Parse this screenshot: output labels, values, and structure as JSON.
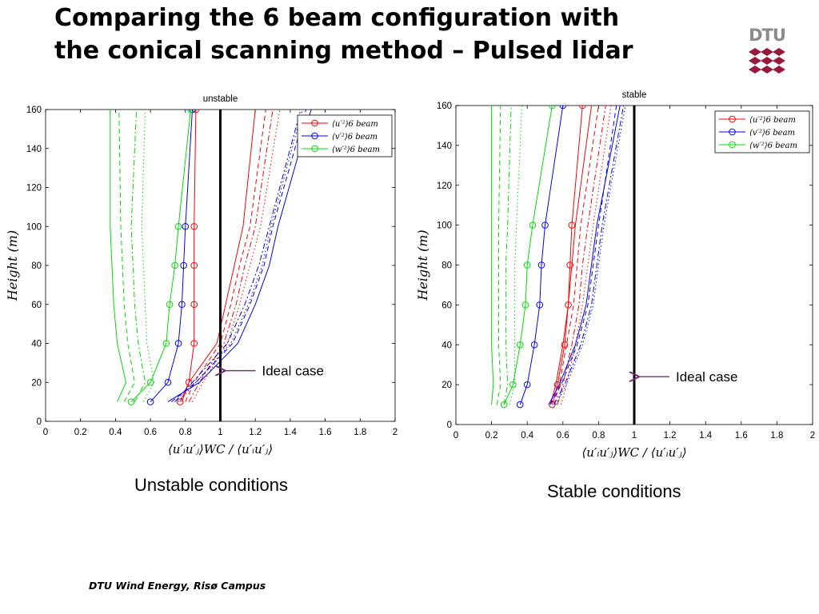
{
  "slide": {
    "title_line1": "Comparing the 6 beam configuration with",
    "title_line2": "the conical scanning method – Pulsed lidar",
    "logo_text": "DTU",
    "footer": "DTU Wind Energy, Risø Campus",
    "caption_left": "Unstable conditions",
    "caption_right": "Stable conditions"
  },
  "colors": {
    "u": "#ff0000",
    "v": "#0000ff",
    "w": "#00dd00",
    "ideal_arrow": "#7b2a7b",
    "logo": "#99193a"
  },
  "chart_data": [
    {
      "type": "line",
      "title": "unstable",
      "xlabel": "⟨u′ᵢu′ⱼ⟩WC / ⟨u′ᵢu′ⱼ⟩",
      "ylabel": "Height (m)",
      "xlim": [
        0,
        2
      ],
      "ylim": [
        0,
        160
      ],
      "xticks": [
        "0",
        "0.2",
        "0.4",
        "0.6",
        "0.8",
        "1",
        "1.2",
        "1.4",
        "1.6",
        "1.8",
        "2"
      ],
      "yticks": [
        "0",
        "20",
        "40",
        "60",
        "80",
        "100",
        "120",
        "140",
        "160"
      ],
      "heights": [
        10,
        20,
        40,
        60,
        80,
        100,
        160
      ],
      "legend": {
        "position": "top-right",
        "entries": [
          {
            "label": "⟨u′²⟩6 beam",
            "color": "#ff0000"
          },
          {
            "label": "⟨v′²⟩6 beam",
            "color": "#0000ff"
          },
          {
            "label": "⟨w′²⟩6 beam",
            "color": "#00dd00"
          }
        ]
      },
      "series": [
        {
          "component": "u",
          "style": "marker",
          "values": [
            0.77,
            0.82,
            0.85,
            0.85,
            0.85,
            0.85,
            0.86
          ]
        },
        {
          "component": "v",
          "style": "marker",
          "values": [
            0.6,
            0.7,
            0.76,
            0.78,
            0.79,
            0.8,
            0.84
          ]
        },
        {
          "component": "w",
          "style": "marker",
          "values": [
            0.49,
            0.6,
            0.69,
            0.71,
            0.74,
            0.76,
            0.83
          ]
        },
        {
          "component": "u",
          "style": "solid",
          "values": [
            0.78,
            0.82,
            0.98,
            1.03,
            1.08,
            1.13,
            1.2
          ]
        },
        {
          "component": "u",
          "style": "dashed",
          "values": [
            0.8,
            0.85,
            1.0,
            1.06,
            1.11,
            1.17,
            1.26
          ]
        },
        {
          "component": "u",
          "style": "dashdot",
          "values": [
            0.82,
            0.88,
            1.02,
            1.09,
            1.14,
            1.2,
            1.3
          ]
        },
        {
          "component": "u",
          "style": "dotted",
          "values": [
            0.84,
            0.9,
            1.04,
            1.11,
            1.17,
            1.23,
            1.34
          ]
        },
        {
          "component": "v",
          "style": "solid",
          "values": [
            0.7,
            0.88,
            1.1,
            1.2,
            1.28,
            1.33,
            1.52
          ]
        },
        {
          "component": "v",
          "style": "dashed",
          "values": [
            0.72,
            0.86,
            1.07,
            1.17,
            1.25,
            1.3,
            1.49
          ]
        },
        {
          "component": "v",
          "style": "dashdot",
          "values": [
            0.74,
            0.84,
            1.04,
            1.14,
            1.22,
            1.28,
            1.46
          ]
        },
        {
          "component": "v",
          "style": "dotted",
          "values": [
            0.76,
            0.86,
            1.06,
            1.16,
            1.24,
            1.29,
            1.47
          ]
        },
        {
          "component": "w",
          "style": "solid",
          "values": [
            0.41,
            0.46,
            0.41,
            0.39,
            0.38,
            0.37,
            0.37
          ]
        },
        {
          "component": "w",
          "style": "dashed",
          "values": [
            0.45,
            0.51,
            0.47,
            0.45,
            0.44,
            0.43,
            0.42
          ]
        },
        {
          "component": "w",
          "style": "dashdot",
          "values": [
            0.51,
            0.57,
            0.53,
            0.51,
            0.5,
            0.49,
            0.52
          ]
        },
        {
          "component": "w",
          "style": "dotted",
          "values": [
            0.56,
            0.62,
            0.58,
            0.57,
            0.56,
            0.55,
            0.57
          ]
        }
      ],
      "ideal_case": {
        "x": 1,
        "label": "Ideal case",
        "arrow_at_height": 26
      }
    },
    {
      "type": "line",
      "title": "stable",
      "xlabel": "⟨u′ᵢu′ⱼ⟩WC / ⟨u′ᵢu′ⱼ⟩",
      "ylabel": "Height (m)",
      "xlim": [
        0,
        2
      ],
      "ylim": [
        0,
        160
      ],
      "xticks": [
        "0",
        "0.2",
        "0.4",
        "0.6",
        "0.8",
        "1",
        "1.2",
        "1.4",
        "1.6",
        "1.8",
        "2"
      ],
      "yticks": [
        "0",
        "20",
        "40",
        "60",
        "80",
        "100",
        "120",
        "140",
        "160"
      ],
      "heights": [
        10,
        20,
        40,
        60,
        80,
        100,
        160
      ],
      "legend": {
        "position": "top-right",
        "entries": [
          {
            "label": "⟨u′²⟩6 beam",
            "color": "#ff0000"
          },
          {
            "label": "⟨v′²⟩6 beam",
            "color": "#0000ff"
          },
          {
            "label": "⟨w′²⟩6 beam",
            "color": "#00dd00"
          }
        ]
      },
      "series": [
        {
          "component": "u",
          "style": "marker",
          "values": [
            0.54,
            0.57,
            0.61,
            0.63,
            0.64,
            0.65,
            0.71
          ]
        },
        {
          "component": "v",
          "style": "marker",
          "values": [
            0.36,
            0.4,
            0.44,
            0.47,
            0.48,
            0.5,
            0.6
          ]
        },
        {
          "component": "w",
          "style": "marker",
          "values": [
            0.27,
            0.32,
            0.36,
            0.39,
            0.4,
            0.43,
            0.54
          ]
        },
        {
          "component": "u",
          "style": "solid",
          "values": [
            0.53,
            0.56,
            0.6,
            0.63,
            0.65,
            0.67,
            0.76
          ]
        },
        {
          "component": "u",
          "style": "dashed",
          "values": [
            0.55,
            0.58,
            0.62,
            0.66,
            0.68,
            0.7,
            0.8
          ]
        },
        {
          "component": "u",
          "style": "dashdot",
          "values": [
            0.57,
            0.6,
            0.65,
            0.69,
            0.71,
            0.74,
            0.84
          ]
        },
        {
          "component": "u",
          "style": "dotted",
          "values": [
            0.59,
            0.62,
            0.67,
            0.71,
            0.74,
            0.77,
            0.87
          ]
        },
        {
          "component": "v",
          "style": "solid",
          "values": [
            0.52,
            0.58,
            0.67,
            0.73,
            0.76,
            0.79,
            0.92
          ]
        },
        {
          "component": "v",
          "style": "dashed",
          "values": [
            0.53,
            0.59,
            0.68,
            0.74,
            0.77,
            0.8,
            0.9
          ]
        },
        {
          "component": "v",
          "style": "dashdot",
          "values": [
            0.55,
            0.61,
            0.7,
            0.76,
            0.79,
            0.82,
            0.94
          ]
        },
        {
          "component": "v",
          "style": "dotted",
          "values": [
            0.56,
            0.62,
            0.71,
            0.77,
            0.8,
            0.83,
            0.95
          ]
        },
        {
          "component": "w",
          "style": "solid",
          "values": [
            0.2,
            0.21,
            0.2,
            0.2,
            0.2,
            0.2,
            0.2
          ]
        },
        {
          "component": "w",
          "style": "dashed",
          "values": [
            0.23,
            0.25,
            0.24,
            0.24,
            0.24,
            0.24,
            0.25
          ]
        },
        {
          "component": "w",
          "style": "dashdot",
          "values": [
            0.27,
            0.29,
            0.28,
            0.28,
            0.28,
            0.29,
            0.31
          ]
        },
        {
          "component": "w",
          "style": "dotted",
          "values": [
            0.3,
            0.33,
            0.33,
            0.33,
            0.33,
            0.34,
            0.37
          ]
        }
      ],
      "ideal_case": {
        "x": 1,
        "label": "Ideal case",
        "arrow_at_height": 24
      }
    }
  ]
}
